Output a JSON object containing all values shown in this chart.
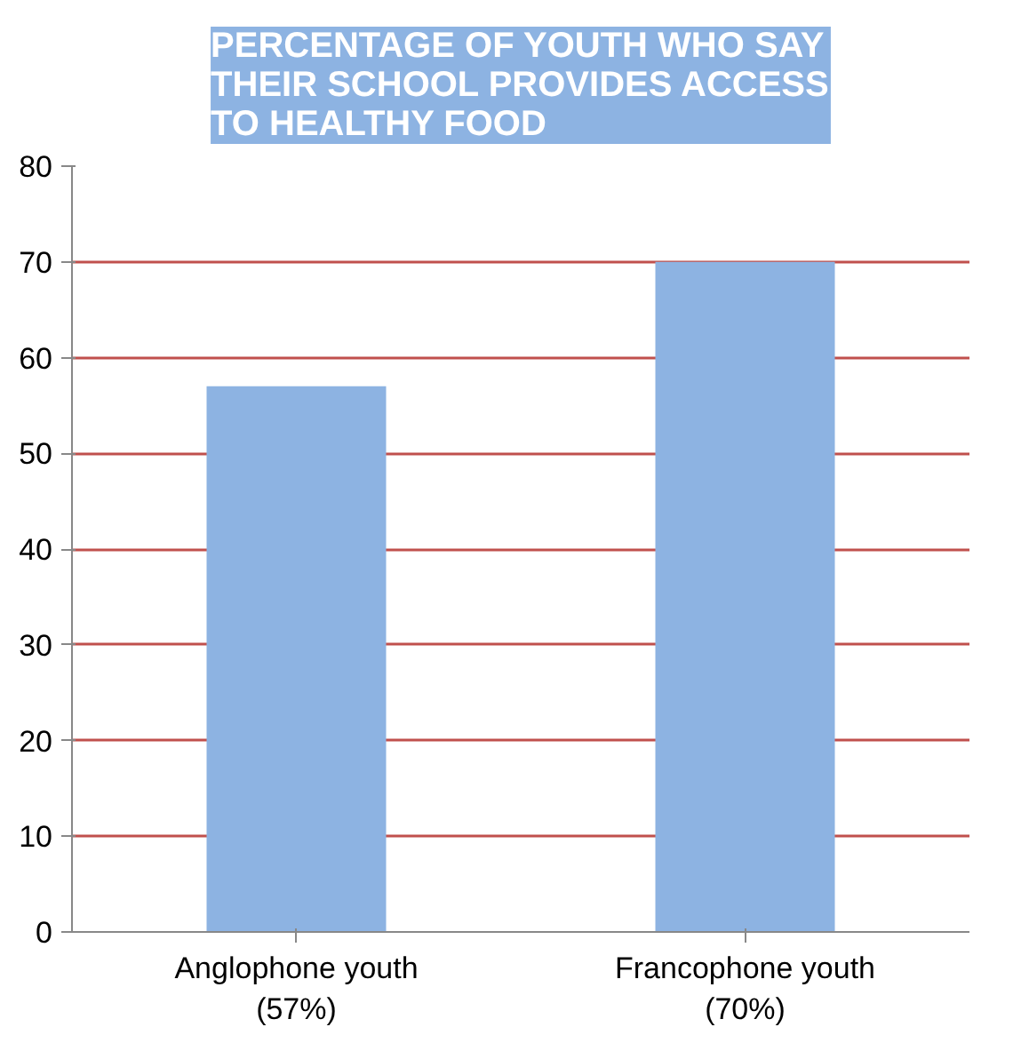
{
  "chart_data": {
    "type": "bar",
    "title": "PERCENTAGE OF YOUTH WHO SAY THEIR SCHOOL PROVIDES ACCESS TO HEALTHY FOOD",
    "categories": [
      "Anglophone youth\n(57%)",
      "Francophone youth\n(70%)"
    ],
    "values": [
      57,
      70
    ],
    "color": "#8db3e2",
    "ylim": [
      0,
      80
    ],
    "yticks": [
      0,
      10,
      20,
      30,
      40,
      50,
      60,
      70,
      80
    ],
    "grid": "y"
  }
}
